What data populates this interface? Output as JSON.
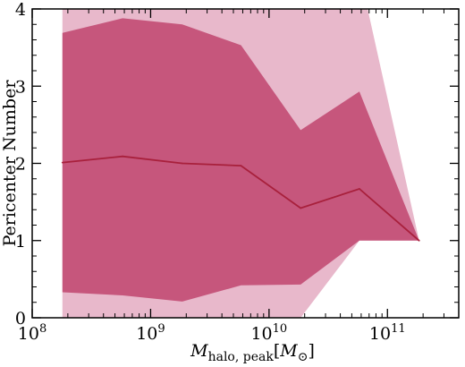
{
  "chart_data": {
    "type": "area",
    "title": "",
    "xlabel": "M_halo,peak [M⊙]",
    "xlabel_parts": {
      "main": "M",
      "sub": "halo, peak",
      "bracket_open": "[",
      "unit_main": "M",
      "unit_sub": "⊙",
      "bracket_close": "]"
    },
    "ylabel": "Pericenter Number",
    "xscale": "log",
    "xlim": [
      100000000.0,
      400000000000.0
    ],
    "ylim": [
      0,
      4
    ],
    "grid": false,
    "x_ticks": [
      {
        "value": 100000000.0,
        "base": "10",
        "exp": "8"
      },
      {
        "value": 1000000000.0,
        "base": "10",
        "exp": "9"
      },
      {
        "value": 10000000000.0,
        "base": "10",
        "exp": "10"
      },
      {
        "value": 100000000000.0,
        "base": "10",
        "exp": "11"
      }
    ],
    "y_ticks": [
      {
        "value": 0,
        "label": "0"
      },
      {
        "value": 1,
        "label": "1"
      },
      {
        "value": 2,
        "label": "2"
      },
      {
        "value": 3,
        "label": "3"
      },
      {
        "value": 4,
        "label": "4"
      }
    ],
    "x": [
      180000000.0,
      580000000.0,
      1850000000.0,
      5800000000.0,
      18500000000.0,
      58000000000.0,
      185000000000.0
    ],
    "series": [
      {
        "role": "outer-band",
        "color": "#e8b8cb",
        "lower": [
          0.0,
          0.0,
          0.0,
          0.0,
          0.0,
          1.0,
          1.0
        ],
        "upper": [
          4.0,
          4.0,
          4.0,
          4.0,
          4.0,
          4.0,
          1.0
        ]
      },
      {
        "role": "inner-band",
        "color": "#c6567c",
        "lower": [
          0.33,
          0.29,
          0.21,
          0.42,
          0.43,
          1.0,
          1.0
        ],
        "upper": [
          3.69,
          3.88,
          3.8,
          3.53,
          2.43,
          2.93,
          1.0
        ]
      },
      {
        "role": "median-line",
        "color": "#a8203c",
        "values": [
          2.01,
          2.09,
          2.0,
          1.97,
          1.42,
          1.67,
          1.0
        ]
      }
    ],
    "outer_band_vertices": {
      "upper": [
        [
          180000000.0,
          4.0
        ],
        [
          68000000000.0,
          4.0
        ],
        [
          185000000000.0,
          1.0
        ]
      ],
      "lower": [
        [
          180000000.0,
          0.0
        ],
        [
          18500000000.0,
          0.0
        ],
        [
          58000000000.0,
          1.0
        ],
        [
          185000000000.0,
          1.0
        ]
      ]
    }
  }
}
